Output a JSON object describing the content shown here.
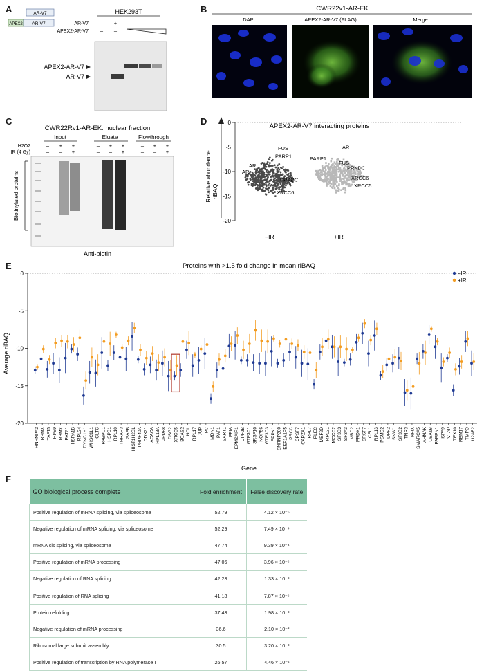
{
  "panels": {
    "a": "A",
    "b": "B",
    "c": "C",
    "d": "D",
    "e": "E",
    "f": "F"
  },
  "panelA": {
    "cell_line": "HEK293T",
    "construct1": {
      "tag": "",
      "name": "AR-V7"
    },
    "construct2": {
      "tag": "APEX2",
      "name": "AR-V7"
    },
    "row_labels": [
      "AR-V7",
      "APEX2-AR-V7"
    ],
    "row1_marks": [
      "–",
      "+",
      "–",
      "–",
      "–"
    ],
    "row2_marks": [
      "–",
      "–",
      "",
      "",
      "–"
    ],
    "band_labels": [
      "APEX2-AR-V7",
      "AR-V7"
    ]
  },
  "panelB": {
    "title": "CWR22v1-AR-EK",
    "channels": [
      "DAPI",
      "APEX2-AR-V7 (FLAG)",
      "Merge"
    ]
  },
  "panelC": {
    "title": "CWR22Rv1-AR-EK: nuclear fraction",
    "groups": [
      "Input",
      "Eluate",
      "Flowthrough"
    ],
    "row_labels": [
      "H2O2",
      "IR (4 Gy)"
    ],
    "h2o2_marks": [
      "–",
      "+",
      "+",
      "–",
      "+",
      "+",
      "–",
      "+",
      "+"
    ],
    "ir_marks": [
      "–",
      "–",
      "+",
      "–",
      "–",
      "+",
      "–",
      "–",
      "+"
    ],
    "side_label": "Biotinylated proteins",
    "bottom_label": "Anti-biotin"
  },
  "panelD": {
    "title": "APEX2-AR-V7 interacting proteins",
    "ylabel_top": "Relative abundance",
    "ylabel": "riBAQ",
    "yticks": [
      "0",
      "-5",
      "-10",
      "-15",
      "-20"
    ],
    "xticks": [
      "–IR",
      "+IR"
    ],
    "labels_left": [
      "AR",
      "PARP1",
      "FUS",
      "PRKDC",
      "XRCC6",
      "XRCC5"
    ],
    "labels_right": [
      "AR",
      "PARP1",
      "FUS",
      "PRKDC",
      "XRCC6",
      "XRCC5"
    ]
  },
  "chart_data": {
    "type": "scatter",
    "title": "Proteins with >1.5 fold change in mean riBAQ",
    "xlabel": "Gene",
    "ylabel": "Average riBAQ",
    "ylim": [
      -20,
      0
    ],
    "yticks": [
      0,
      -5,
      -10,
      -15,
      -20
    ],
    "legend": "top-right",
    "colors": {
      "minus_ir": "#1f3a93",
      "plus_ir": "#f39c21",
      "highlight": "#b03a2e"
    },
    "highlight_gene": "XRCC5",
    "categories": [
      "HNRNPA3",
      "RBMX",
      "TAF15",
      "RPS9",
      "RBMX",
      "PATZ1",
      "HSPA1B",
      "RPL24",
      "DYNC1H1",
      "WHSC1L1",
      "CLTC",
      "PABPC1",
      "HSPB1",
      "RPL10",
      "THRAP3",
      "SAFB",
      "HIST1H2BL",
      "PRPF40A",
      "DDX21",
      "ACACA",
      "RPL13A",
      "PRPF8",
      "DSG2",
      "XRCC5",
      "BCAS2",
      "NCL",
      "RPL17",
      "JUP",
      "PC",
      "MDN1",
      "PAF1",
      "SART1",
      "PPIA",
      "EPM2AIP1",
      "UPF2B",
      "GTF3C1",
      "SRSF10",
      "NOP56",
      "GTF3C3",
      "EPPK1",
      "SNRNP200",
      "EEF1A1P5",
      "PRCC",
      "CPSF7",
      "CAPZA1",
      "RPL7",
      "PLEC",
      "MEF2D",
      "RPL21",
      "MCCC2",
      "SF3B3",
      "SF3A3",
      "MBD2",
      "PRDX1",
      "SRSF7",
      "CFL1",
      "RPL13",
      "PSMD2",
      "DPF2",
      "SNW1",
      "SF3B2",
      "TNR3",
      "NFIX",
      "SMARCA5",
      "AHNAK",
      "TUBA1B",
      "PABPN1",
      "HSPA9",
      "VTAP",
      "TEX10",
      "RBM17",
      "TMPO",
      "U2AF2"
    ],
    "series": [
      {
        "name": "–IR",
        "values": [
          -12.9,
          -11.4,
          -12.8,
          -12.0,
          -12.9,
          -11.3,
          -10.1,
          -10.8,
          -16.3,
          -13.2,
          -13.3,
          -10.6,
          -12.3,
          -10.6,
          -11.2,
          -11.4,
          -8.4,
          -11.5,
          -12.8,
          -12.2,
          -12.9,
          -12.0,
          -13.7,
          -13.7,
          -12.9,
          -10.2,
          -12.3,
          -11.6,
          -10.7,
          -16.7,
          -12.9,
          -12.7,
          -9.7,
          -9.6,
          -11.6,
          -11.6,
          -11.9,
          -12.0,
          -12.0,
          -10.4,
          -12.0,
          -11.6,
          -10.5,
          -11.2,
          -12.0,
          -12.1,
          -14.8,
          -10.5,
          -9.0,
          -9.8,
          -11.8,
          -11.9,
          -11.5,
          -9.2,
          -8.0,
          -10.7,
          -8.3,
          -13.6,
          -12.2,
          -12.0,
          -11.3,
          -15.9,
          -16.0,
          -11.4,
          -10.4,
          -8.2,
          -9.8,
          -12.6,
          -11.3,
          -15.6,
          -12.4,
          -9.1,
          -12.0
        ]
      },
      {
        "name": "+IR",
        "values": [
          -12.5,
          -10.1,
          -11.5,
          -9.3,
          -9.0,
          -9.1,
          -9.5,
          -8.6,
          -14.3,
          -11.2,
          -12.2,
          -9.1,
          -9.4,
          -8.2,
          -9.9,
          -9.0,
          -7.3,
          -10.2,
          -11.3,
          -10.7,
          -11.9,
          -11.2,
          -12.9,
          -12.3,
          -9.1,
          -9.3,
          -10.9,
          -10.1,
          -9.5,
          -15.1,
          -11.5,
          -11.0,
          -9.4,
          -8.3,
          -10.2,
          -9.4,
          -7.6,
          -9.0,
          -9.1,
          -8.7,
          -9.4,
          -8.8,
          -9.4,
          -9.6,
          -10.5,
          -10.6,
          -12.9,
          -9.8,
          -8.8,
          -9.8,
          -9.8,
          -10.1,
          -10.2,
          -8.6,
          -6.7,
          -8.9,
          -7.4,
          -13.1,
          -11.4,
          -11.2,
          -11.7,
          -15.6,
          -15.1,
          -12.0,
          -10.6,
          -7.4,
          -9.1,
          -11.8,
          -10.6,
          -12.8,
          -11.8,
          -8.7,
          -11.8
        ]
      }
    ]
  },
  "goTable": {
    "headers": [
      "GO biological process complete",
      "Fold enrichment",
      "False discovery rate"
    ],
    "rows": [
      {
        "term": "Positive regulation of mRNA splicing, via spliceosome",
        "fold": "52.79",
        "fdr": "4.12 × 10⁻⁵"
      },
      {
        "term": "Negative regulation of mRNA splicing, via spliceosome",
        "fold": "52.29",
        "fdr": "7.49 × 10⁻⁴"
      },
      {
        "term": "mRNA cis splicing, via spliceosome",
        "fold": "47.74",
        "fdr": "9.39 × 10⁻⁴"
      },
      {
        "term": "Positive regulation of mRNA processing",
        "fold": "47.06",
        "fdr": "3.96 × 10⁻⁶"
      },
      {
        "term": "Negative regulation of RNA splicing",
        "fold": "42.23",
        "fdr": "1.33 × 10⁻³"
      },
      {
        "term": "Positive regulation of RNA splicing",
        "fold": "41.18",
        "fdr": "7.87 × 10⁻⁶"
      },
      {
        "term": "Protein refolding",
        "fold": "37.43",
        "fdr": "1.98 × 10⁻²"
      },
      {
        "term": "Negative regulation of mRNA processing",
        "fold": "36.6",
        "fdr": "2.10 × 10⁻³"
      },
      {
        "term": "Ribosomal large subunit assembly",
        "fold": "30.5",
        "fdr": "3.20 × 10⁻²"
      },
      {
        "term": "Positive regulation of transcription by RNA polymerase I",
        "fold": "26.57",
        "fdr": "4.46 × 10⁻²"
      }
    ]
  }
}
